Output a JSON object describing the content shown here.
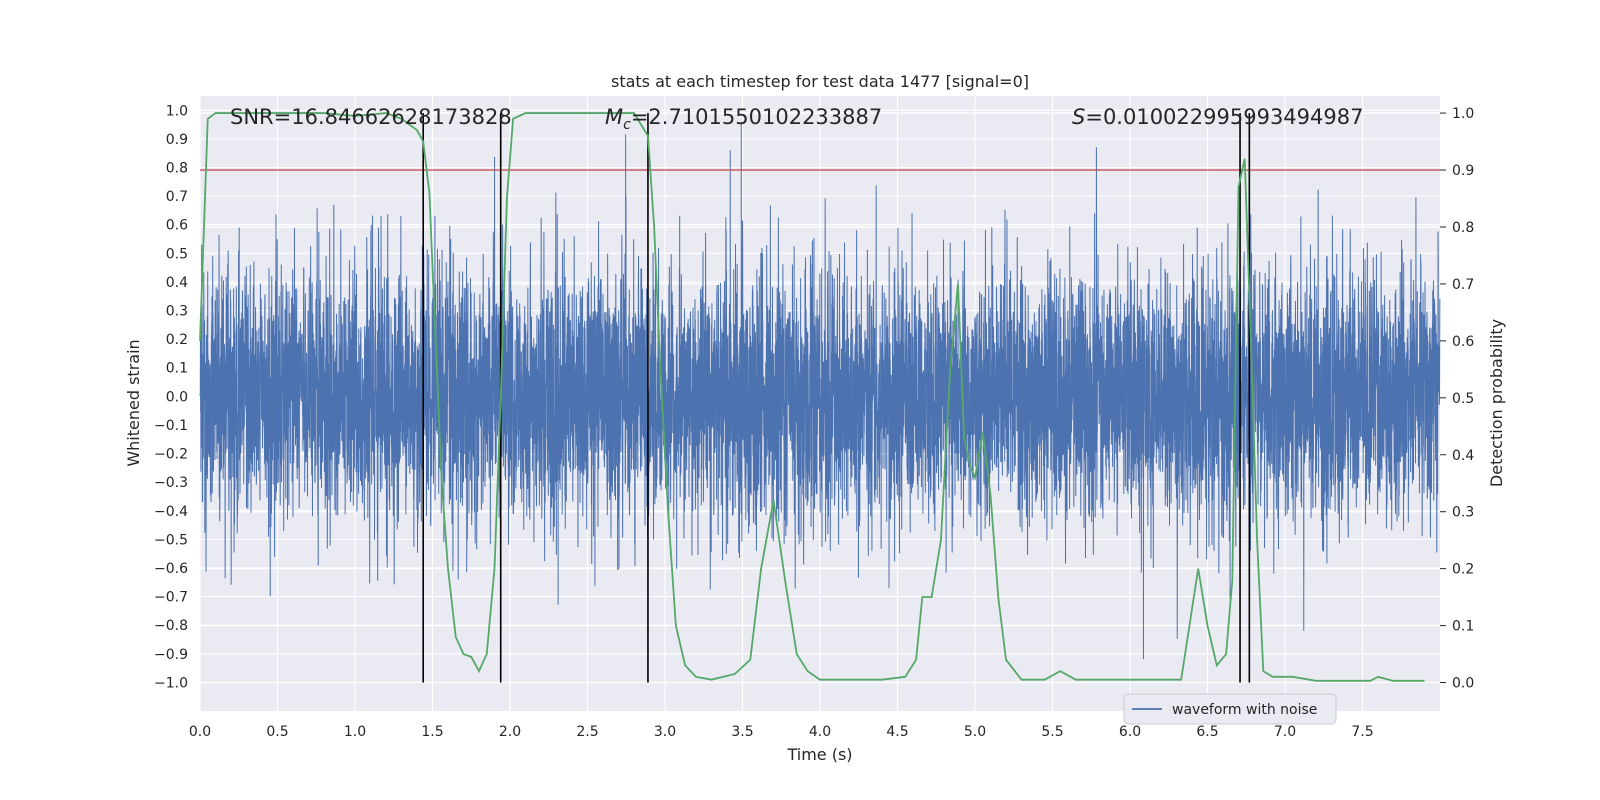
{
  "chart_data": {
    "type": "line",
    "title": "stats at each timestep for test data 1477 [signal=0]",
    "xlabel": "Time (s)",
    "ylabel": "Whitened strain",
    "y2label": "Detection probability",
    "xlim": [
      0.0,
      8.0
    ],
    "ylim": [
      -1.1,
      1.05
    ],
    "y2lim": [
      -0.05,
      1.03
    ],
    "xticks": [
      "0.0",
      "0.5",
      "1.0",
      "1.5",
      "2.0",
      "2.5",
      "3.0",
      "3.5",
      "4.0",
      "4.5",
      "5.0",
      "5.5",
      "6.0",
      "6.5",
      "7.0",
      "7.5"
    ],
    "yticks": [
      "1.0",
      "0.9",
      "0.8",
      "0.7",
      "0.6",
      "0.5",
      "0.4",
      "0.3",
      "0.2",
      "0.1",
      "0.0",
      "-0.1",
      "-0.2",
      "-0.3",
      "-0.4",
      "-0.5",
      "-0.6",
      "-0.7",
      "-0.8",
      "-0.9",
      "-1.0"
    ],
    "y2ticks": [
      "1.0",
      "0.9",
      "0.8",
      "0.7",
      "0.6",
      "0.5",
      "0.4",
      "0.3",
      "0.2",
      "0.1",
      "0.0"
    ],
    "grid": true,
    "legend": {
      "placement": "lower-right",
      "entries": [
        "waveform with noise"
      ]
    },
    "annotations": {
      "snr": "SNR=16.84662628173828",
      "mc_symbol": "M",
      "mc_sub": "c",
      "mc_value": "=2.7101550102233887",
      "s_symbol": "S",
      "s_value": "=0.010022995993494987"
    },
    "threshold": 0.9,
    "vertical_lines": [
      1.44,
      1.94,
      2.89,
      6.71,
      6.77
    ],
    "series": [
      {
        "name": "waveform with noise",
        "color": "#4c72b0",
        "samples": 8192,
        "seed": 1477,
        "typical_amplitude": 0.4,
        "peak_range": [
          -1.0,
          0.96
        ]
      },
      {
        "color": "#55a868",
        "axis": "right",
        "x": [
          0.0,
          0.05,
          0.1,
          0.2,
          0.4,
          0.6,
          0.8,
          1.0,
          1.2,
          1.3,
          1.4,
          1.44,
          1.48,
          1.52,
          1.56,
          1.6,
          1.65,
          1.7,
          1.75,
          1.8,
          1.85,
          1.9,
          1.94,
          1.98,
          2.02,
          2.1,
          2.2,
          2.4,
          2.6,
          2.8,
          2.89,
          2.93,
          2.97,
          3.02,
          3.07,
          3.13,
          3.2,
          3.3,
          3.45,
          3.55,
          3.62,
          3.7,
          3.78,
          3.85,
          3.92,
          4.0,
          4.2,
          4.4,
          4.55,
          4.62,
          4.66,
          4.72,
          4.78,
          4.84,
          4.89,
          4.93,
          4.97,
          5.0,
          5.05,
          5.1,
          5.15,
          5.2,
          5.3,
          5.45,
          5.55,
          5.65,
          5.75,
          5.85,
          6.0,
          6.2,
          6.33,
          6.44,
          6.5,
          6.56,
          6.62,
          6.66,
          6.7,
          6.74,
          6.78,
          6.82,
          6.86,
          6.92,
          7.05,
          7.2,
          7.4,
          7.55,
          7.6,
          7.7,
          7.9
        ],
        "y": [
          0.6,
          0.99,
          1.0,
          1.0,
          1.0,
          1.0,
          1.0,
          0.995,
          1.0,
          0.99,
          0.97,
          0.95,
          0.86,
          0.6,
          0.35,
          0.2,
          0.08,
          0.05,
          0.045,
          0.02,
          0.05,
          0.2,
          0.5,
          0.85,
          0.99,
          1.0,
          1.0,
          1.0,
          1.0,
          1.0,
          0.96,
          0.8,
          0.55,
          0.3,
          0.1,
          0.03,
          0.01,
          0.005,
          0.015,
          0.04,
          0.2,
          0.32,
          0.17,
          0.05,
          0.02,
          0.005,
          0.005,
          0.005,
          0.01,
          0.04,
          0.15,
          0.15,
          0.25,
          0.55,
          0.7,
          0.43,
          0.38,
          0.36,
          0.44,
          0.33,
          0.15,
          0.04,
          0.005,
          0.005,
          0.02,
          0.005,
          0.005,
          0.005,
          0.005,
          0.005,
          0.005,
          0.2,
          0.1,
          0.03,
          0.05,
          0.18,
          0.87,
          0.92,
          0.6,
          0.25,
          0.02,
          0.01,
          0.01,
          0.003,
          0.003,
          0.003,
          0.01,
          0.003,
          0.003
        ]
      }
    ],
    "colors": {
      "background": "#eaeaf2",
      "grid": "#ffffff",
      "threshold": "#c44e52",
      "vline": "#000000"
    }
  }
}
